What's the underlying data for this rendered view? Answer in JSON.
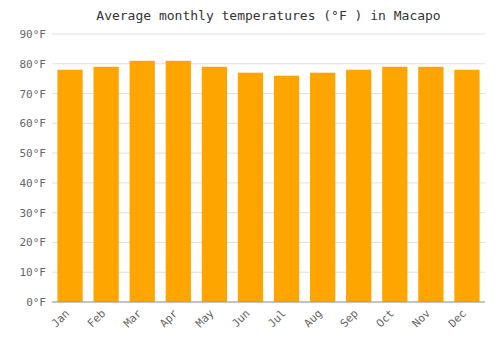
{
  "chart_data": {
    "type": "bar",
    "title": "Average monthly temperatures (°F ) in Macapo",
    "categories": [
      "Jan",
      "Feb",
      "Mar",
      "Apr",
      "May",
      "Jun",
      "Jul",
      "Aug",
      "Sep",
      "Oct",
      "Nov",
      "Dec"
    ],
    "values": [
      78,
      79,
      81,
      81,
      79,
      77,
      76,
      77,
      78,
      79,
      79,
      78
    ],
    "color": "#FFA500",
    "ylim": [
      0,
      90
    ],
    "yticks": [
      {
        "value": 0,
        "label": "0°F"
      },
      {
        "value": 10,
        "label": "10°F"
      },
      {
        "value": 20,
        "label": "20°F"
      },
      {
        "value": 30,
        "label": "30°F"
      },
      {
        "value": 40,
        "label": "40°F"
      },
      {
        "value": 50,
        "label": "50°F"
      },
      {
        "value": 60,
        "label": "60°F"
      },
      {
        "value": 70,
        "label": "70°F"
      },
      {
        "value": 80,
        "label": "80°F"
      },
      {
        "value": 90,
        "label": "90°F"
      }
    ],
    "grid": true
  }
}
